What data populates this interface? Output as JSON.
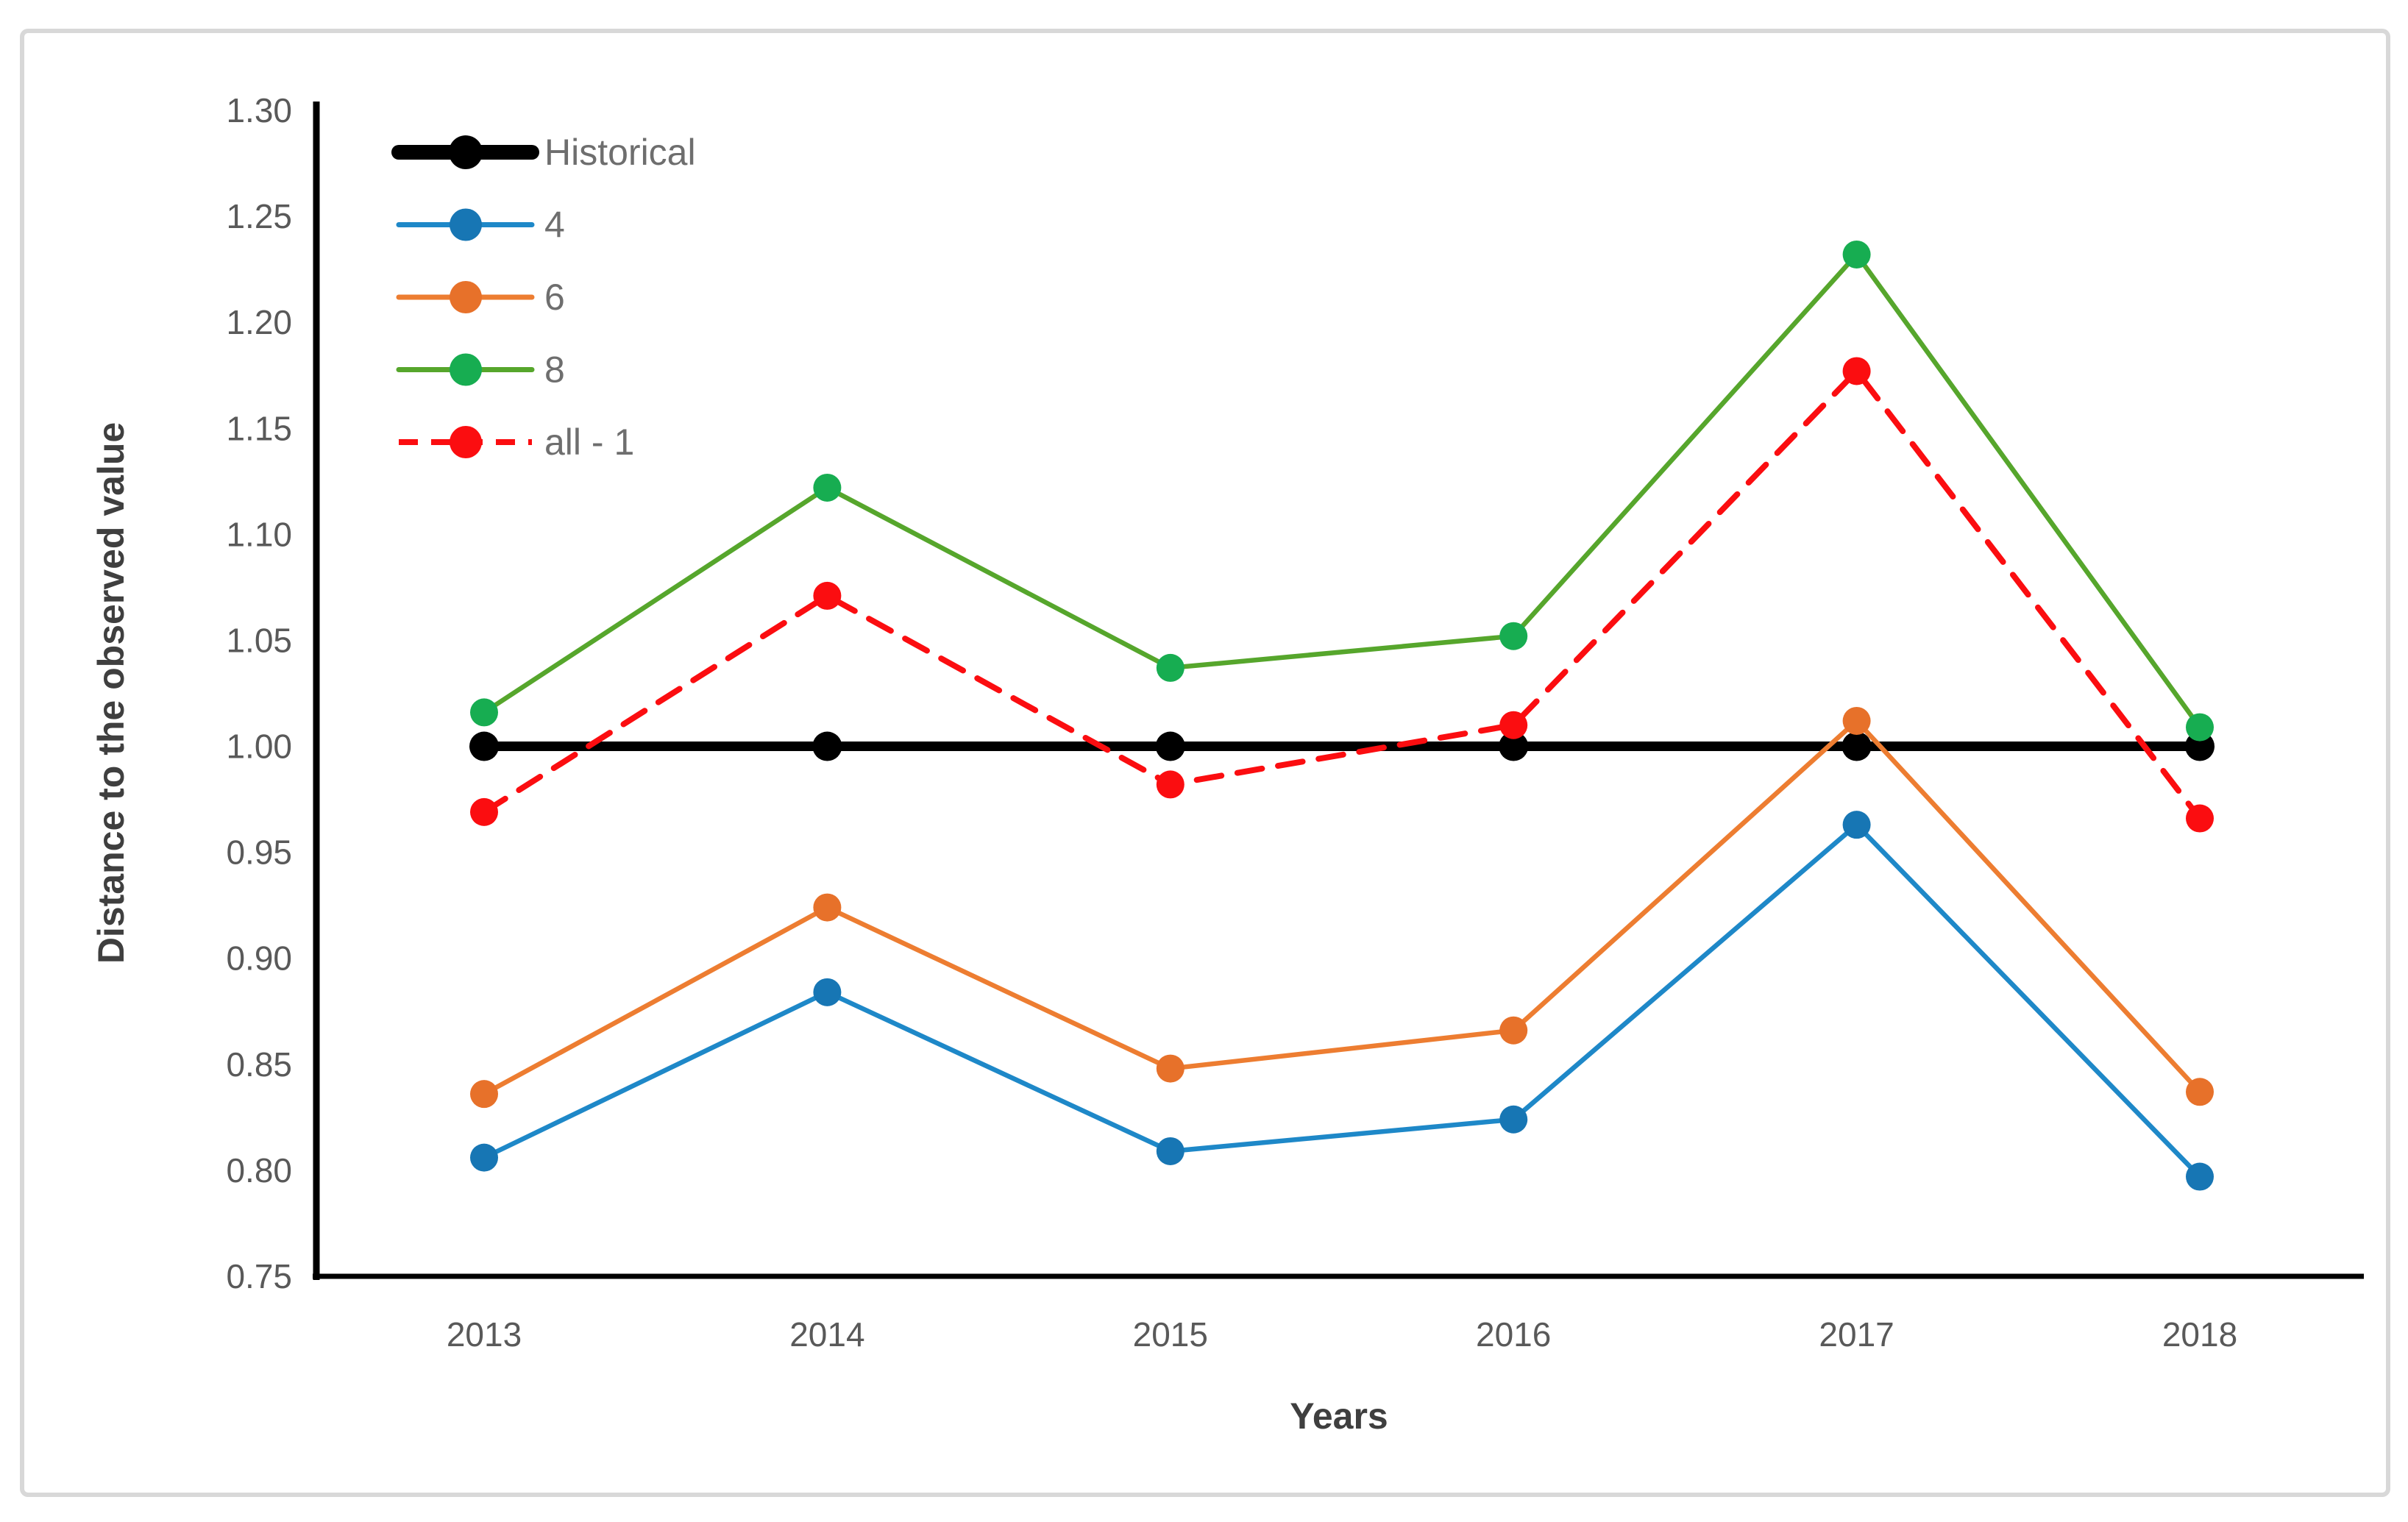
{
  "figure": {
    "background": "#ffffff",
    "border_color": "#d8d8d8"
  },
  "chart_data": {
    "type": "line",
    "title": "",
    "xlabel": "Years",
    "ylabel": "Distance to the observed value",
    "categories": [
      "2013",
      "2014",
      "2015",
      "2016",
      "2017",
      "2018"
    ],
    "ylim": [
      0.75,
      1.3
    ],
    "ytick_step": 0.05,
    "yticks": [
      "0.75",
      "0.80",
      "0.85",
      "0.90",
      "0.95",
      "1.00",
      "1.05",
      "1.10",
      "1.15",
      "1.20",
      "1.25",
      "1.30"
    ],
    "grid": false,
    "legend_position": "upper-left-inside",
    "legend_items": [
      "Historical",
      "4",
      "6",
      "8",
      "all - 1"
    ],
    "text_colors": {
      "tick_labels": "#595959",
      "legend_labels": "#6e6e6e",
      "axis_titles": "#3f3f3f",
      "axis_line": "#000000"
    },
    "series": [
      {
        "name": "Historical",
        "line_color": "#000000",
        "marker_color": "#000000",
        "style": "solid",
        "thick": true,
        "values": [
          1.0,
          1.0,
          1.0,
          1.0,
          1.0,
          1.0
        ]
      },
      {
        "name": "4",
        "line_color": "#1e88c8",
        "marker_color": "#1776b4",
        "style": "solid",
        "thick": false,
        "values": [
          0.806,
          0.884,
          0.809,
          0.824,
          0.963,
          0.797
        ]
      },
      {
        "name": "6",
        "line_color": "#ed7d31",
        "marker_color": "#e7712a",
        "style": "solid",
        "thick": false,
        "values": [
          0.836,
          0.924,
          0.848,
          0.866,
          1.012,
          0.837
        ]
      },
      {
        "name": "8",
        "line_color": "#56a62c",
        "marker_color": "#17ad51",
        "style": "solid",
        "thick": false,
        "values": [
          1.016,
          1.122,
          1.037,
          1.052,
          1.232,
          1.009
        ]
      },
      {
        "name": "all - 1",
        "line_color": "#fb0d10",
        "marker_color": "#fb0d10",
        "style": "dashed",
        "thick": false,
        "values": [
          0.969,
          1.071,
          0.982,
          1.01,
          1.177,
          0.966
        ]
      }
    ]
  }
}
